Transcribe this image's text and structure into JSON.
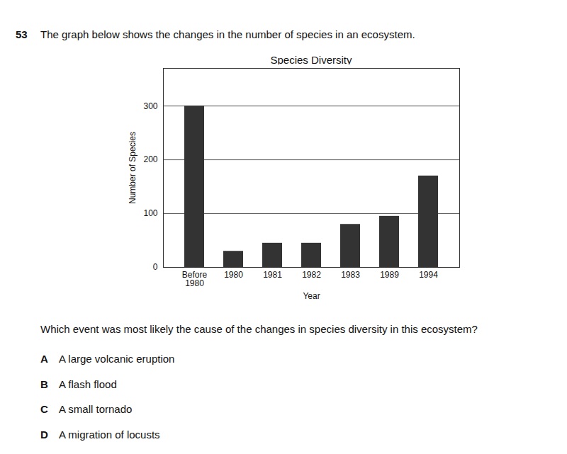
{
  "question": {
    "number": "53",
    "intro": "The graph below shows the changes in the number of species in an ecosystem.",
    "prompt": "Which event was most likely the cause of the changes in species diversity in this ecosystem?",
    "options": [
      {
        "letter": "A",
        "text": "A large volcanic eruption"
      },
      {
        "letter": "B",
        "text": "A flash flood"
      },
      {
        "letter": "C",
        "text": "A small tornado"
      },
      {
        "letter": "D",
        "text": "A migration of locusts"
      }
    ]
  },
  "chart_data": {
    "type": "bar",
    "title": "Species Diversity",
    "x_label": "Year",
    "y_label": "Number of Species",
    "categories": [
      "Before 1980",
      "1980",
      "1981",
      "1982",
      "1983",
      "1989",
      "1994"
    ],
    "values": [
      300,
      30,
      45,
      45,
      80,
      95,
      170
    ],
    "color": "#333333",
    "ylim": [
      0,
      370
    ],
    "yticks": [
      0,
      100,
      200,
      300
    ],
    "grid": true
  }
}
